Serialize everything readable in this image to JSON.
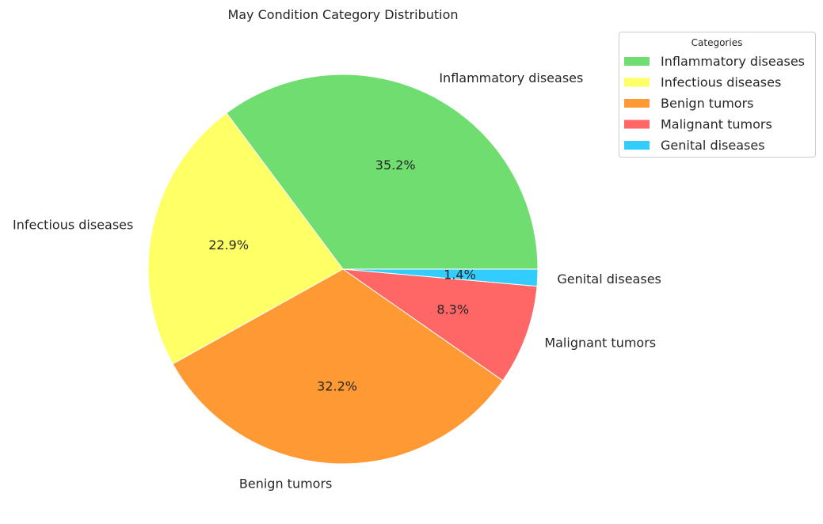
{
  "chart_data": {
    "type": "pie",
    "title": "May Condition Category Distribution",
    "categories": [
      "Inflammatory diseases",
      "Infectious diseases",
      "Benign tumors",
      "Malignant tumors",
      "Genital diseases"
    ],
    "values": [
      35.2,
      22.9,
      32.2,
      8.3,
      1.4
    ],
    "value_labels": [
      "35.2%",
      "22.9%",
      "32.2%",
      "8.3%",
      "1.4%"
    ],
    "colors": [
      "#70dd70",
      "#ffff66",
      "#ff9933",
      "#ff6666",
      "#33ccff"
    ],
    "start_angle": 0,
    "direction": "counterclockwise",
    "legend": {
      "title": "Categories",
      "placement": "top-right",
      "entries": [
        "Inflammatory diseases",
        "Infectious diseases",
        "Benign tumors",
        "Malignant tumors",
        "Genital diseases"
      ]
    }
  }
}
